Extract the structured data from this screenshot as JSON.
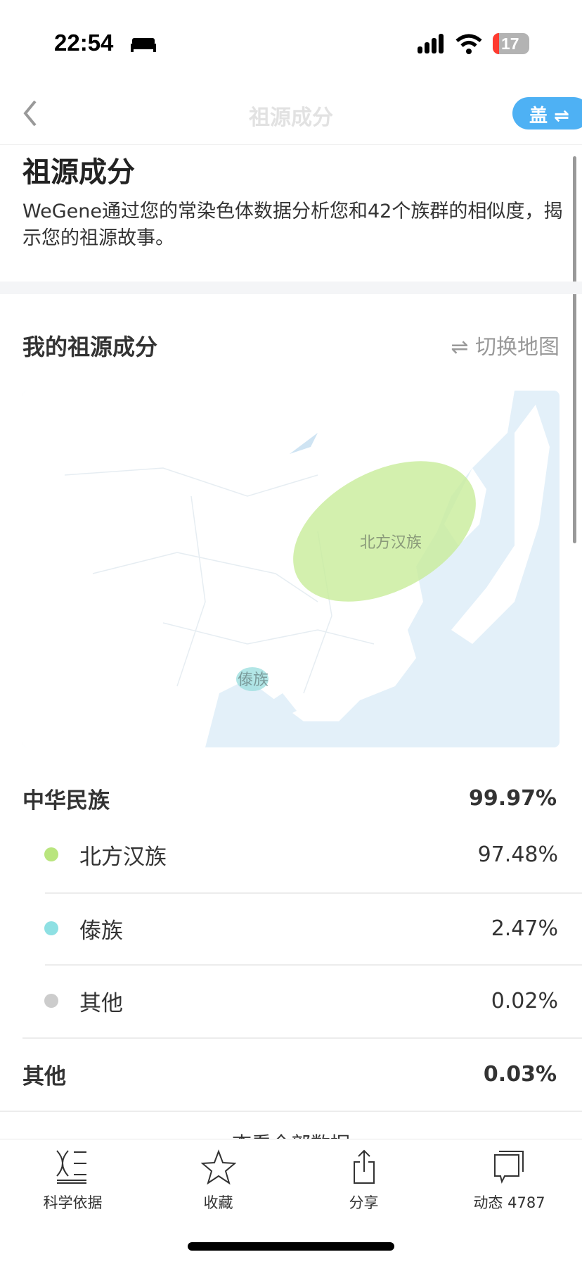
{
  "status_bar": {
    "time": "22:54",
    "battery": "17",
    "icons": [
      "bed-icon",
      "signal-icon",
      "wifi-icon",
      "battery-icon"
    ]
  },
  "nav": {
    "title": "祖源成分",
    "pill_label": "盖 ⇌"
  },
  "header": {
    "title": "祖源成分",
    "description": "WeGene通过您的常染色体数据分析您和42个族群的相似度，揭示您的祖源故事。"
  },
  "section": {
    "title": "我的祖源成分",
    "switch_label": "⇌ 切换地图"
  },
  "map": {
    "labels": [
      "北方汉族",
      "傣族"
    ],
    "colors": {
      "north_han": "#c8ec9a",
      "dai": "#9fe0e0",
      "sea": "#e3f0f9"
    }
  },
  "composition": {
    "groups": [
      {
        "name": "中华民族",
        "value": "99.97%",
        "items": [
          {
            "name": "北方汉族",
            "value": "97.48%",
            "color": "#b9e57e"
          },
          {
            "name": "傣族",
            "value": "2.47%",
            "color": "#8ee0e3"
          },
          {
            "name": "其他",
            "value": "0.02%",
            "color": "#cccccc"
          }
        ]
      },
      {
        "name": "其他",
        "value": "0.03%"
      }
    ],
    "more_link": "查看全部数据"
  },
  "tabbar": [
    {
      "label": "科学依据",
      "icon": "dna-list-icon"
    },
    {
      "label": "收藏",
      "icon": "star-icon"
    },
    {
      "label": "分享",
      "icon": "share-icon"
    },
    {
      "label": "动态 4787",
      "icon": "comments-icon"
    }
  ]
}
